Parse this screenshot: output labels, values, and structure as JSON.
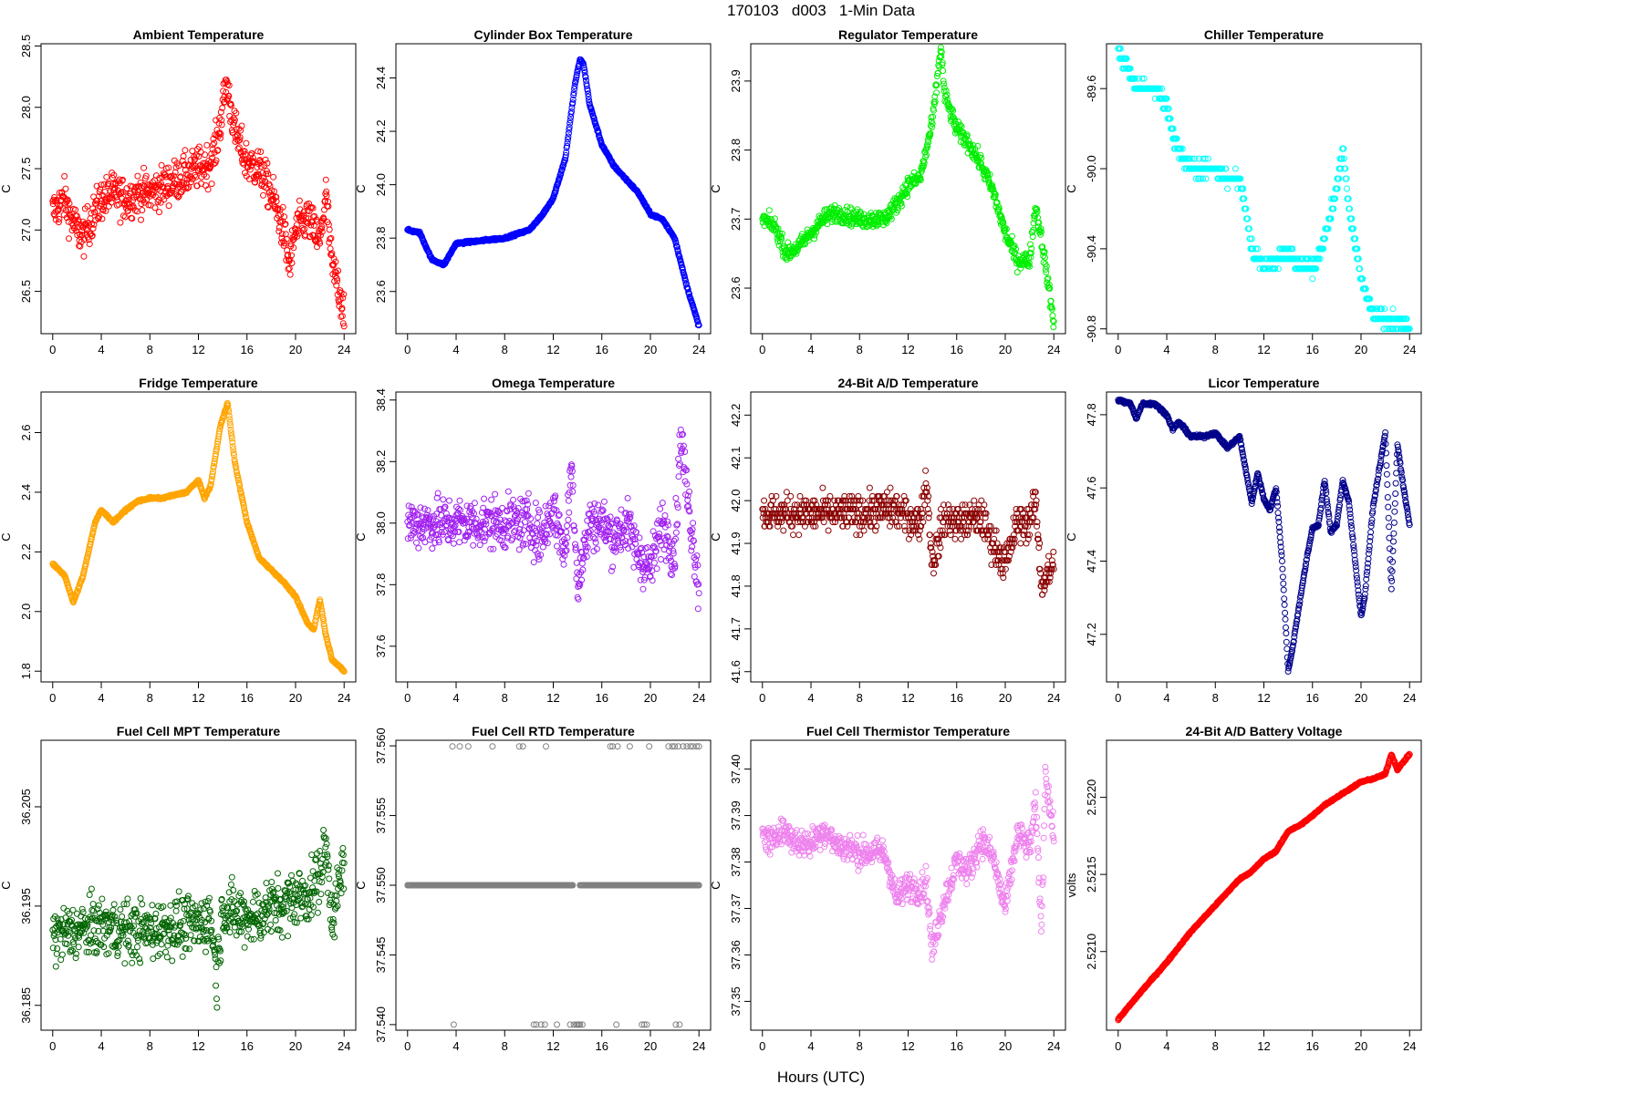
{
  "figure": {
    "title": "170103   d003   1-Min Data",
    "xlabel": "Hours (UTC)"
  },
  "chart_data": [
    {
      "type": "scatter",
      "title": "Ambient Temperature",
      "ylabel": "C",
      "color": "#ff0000",
      "xlim": [
        -0.96,
        24.96
      ],
      "ylim": [
        26.155,
        28.518
      ],
      "xticks": [
        0,
        4,
        8,
        12,
        16,
        20,
        24
      ],
      "yticks": [
        26.5,
        27.0,
        27.5,
        28.0,
        28.5
      ],
      "ytick_labels": [
        "26.5",
        "27.0",
        "27.5",
        "28.0",
        "28.5"
      ],
      "anchors_x": [
        0,
        0.5,
        1,
        1.5,
        2,
        2.5,
        3,
        4,
        5,
        6,
        7,
        8,
        9,
        10,
        11,
        12,
        13,
        13.5,
        14,
        14.3,
        15,
        16,
        17,
        18,
        19,
        19.5,
        20,
        21,
        22,
        22.5,
        23,
        23.5,
        24
      ],
      "anchors_y": [
        27.15,
        27.2,
        27.25,
        27.1,
        27.0,
        26.95,
        27.05,
        27.25,
        27.3,
        27.25,
        27.3,
        27.3,
        27.35,
        27.4,
        27.45,
        27.5,
        27.55,
        27.7,
        28.0,
        28.2,
        27.8,
        27.55,
        27.5,
        27.3,
        27.0,
        26.7,
        27.0,
        27.1,
        26.9,
        27.3,
        26.7,
        26.55,
        26.35
      ],
      "noise": 0.16
    },
    {
      "type": "scatter",
      "title": "Cylinder Box Temperature",
      "ylabel": "C",
      "color": "#0000ff",
      "xlim": [
        -0.96,
        24.96
      ],
      "ylim": [
        23.442,
        24.528
      ],
      "xticks": [
        0,
        4,
        8,
        12,
        16,
        20,
        24
      ],
      "yticks": [
        23.6,
        23.8,
        24.0,
        24.2,
        24.4
      ],
      "ytick_labels": [
        "23.6",
        "23.8",
        "24.0",
        "24.2",
        "24.4"
      ],
      "anchors_x": [
        0,
        1,
        2,
        3,
        4,
        6,
        8,
        10,
        11,
        12,
        13,
        13.8,
        14.2,
        14.5,
        15,
        16,
        17,
        18,
        19,
        20,
        21,
        22,
        23,
        24
      ],
      "anchors_y": [
        23.83,
        23.82,
        23.72,
        23.7,
        23.78,
        23.79,
        23.8,
        23.83,
        23.88,
        23.95,
        24.1,
        24.38,
        24.47,
        24.45,
        24.3,
        24.15,
        24.07,
        24.02,
        23.97,
        23.89,
        23.87,
        23.8,
        23.62,
        23.47
      ],
      "noise": 0.004
    },
    {
      "type": "scatter",
      "title": "Regulator Temperature",
      "ylabel": "C",
      "color": "#00ee00",
      "xlim": [
        -0.96,
        24.96
      ],
      "ylim": [
        23.534,
        23.954
      ],
      "xticks": [
        0,
        4,
        8,
        12,
        16,
        20,
        24
      ],
      "yticks": [
        23.6,
        23.7,
        23.8,
        23.9
      ],
      "ytick_labels": [
        "23.6",
        "23.7",
        "23.8",
        "23.9"
      ],
      "anchors_x": [
        0,
        1,
        2,
        3,
        4,
        5,
        6,
        8,
        10,
        11,
        12,
        13,
        14,
        14.7,
        15,
        16,
        17,
        18,
        19,
        20,
        21,
        22,
        22.5,
        23,
        24
      ],
      "anchors_y": [
        23.7,
        23.69,
        23.65,
        23.66,
        23.68,
        23.7,
        23.71,
        23.7,
        23.7,
        23.72,
        23.75,
        23.76,
        23.84,
        23.95,
        23.88,
        23.83,
        23.81,
        23.78,
        23.74,
        23.68,
        23.64,
        23.64,
        23.72,
        23.67,
        23.55
      ],
      "noise": 0.012
    },
    {
      "type": "scatter",
      "title": "Chiller Temperature",
      "ylabel": "C",
      "color": "#00ffff",
      "xlim": [
        -0.96,
        24.96
      ],
      "ylim": [
        -90.824,
        -89.376
      ],
      "xticks": [
        0,
        4,
        8,
        12,
        16,
        20,
        24
      ],
      "yticks": [
        -90.8,
        -90.4,
        -90.0,
        -89.6
      ],
      "ytick_labels": [
        "-90.8",
        "-90.4",
        "-90.0",
        "-89.6"
      ],
      "anchors_x": [
        0,
        1,
        1.5,
        3,
        4,
        4.5,
        5,
        6,
        8,
        9,
        10,
        10.5,
        11,
        12,
        14,
        15,
        16,
        17,
        18,
        18.5,
        19,
        20,
        21,
        22,
        23,
        24
      ],
      "anchors_y": [
        -89.42,
        -89.52,
        -89.6,
        -89.6,
        -89.68,
        -89.82,
        -89.92,
        -90.0,
        -90.0,
        -90.05,
        -90.05,
        -90.2,
        -90.4,
        -90.48,
        -90.42,
        -90.48,
        -90.5,
        -90.35,
        -90.1,
        -89.9,
        -90.2,
        -90.55,
        -90.72,
        -90.75,
        -90.76,
        -90.78
      ],
      "noise": 0.035,
      "quant": 0.05
    },
    {
      "type": "scatter",
      "title": "Fridge Temperature",
      "ylabel": "C",
      "color": "#ffa500",
      "xlim": [
        -0.96,
        24.96
      ],
      "ylim": [
        1.764,
        2.736
      ],
      "xticks": [
        0,
        4,
        8,
        12,
        16,
        20,
        24
      ],
      "yticks": [
        1.8,
        2.0,
        2.2,
        2.4,
        2.6
      ],
      "ytick_labels": [
        "1.8",
        "2.0",
        "2.2",
        "2.4",
        "2.6"
      ],
      "anchors_x": [
        0,
        1,
        1.7,
        2.5,
        3.5,
        4,
        5,
        6,
        7,
        8,
        9,
        10,
        11,
        12,
        12.5,
        13,
        13.8,
        14.4,
        15,
        16,
        17,
        18,
        19,
        20,
        21,
        21.5,
        22,
        22.5,
        23,
        24
      ],
      "anchors_y": [
        2.16,
        2.12,
        2.03,
        2.12,
        2.3,
        2.34,
        2.3,
        2.34,
        2.37,
        2.38,
        2.38,
        2.39,
        2.4,
        2.44,
        2.38,
        2.42,
        2.62,
        2.7,
        2.5,
        2.3,
        2.18,
        2.14,
        2.1,
        2.05,
        1.96,
        1.94,
        2.04,
        1.92,
        1.84,
        1.8
      ],
      "noise": 0.003
    },
    {
      "type": "scatter",
      "title": "Omega Temperature",
      "ylabel": "C",
      "color": "#a020f0",
      "xlim": [
        -0.96,
        24.96
      ],
      "ylim": [
        37.484,
        38.426
      ],
      "xticks": [
        0,
        4,
        8,
        12,
        16,
        20,
        24
      ],
      "yticks": [
        37.6,
        37.8,
        38.0,
        38.2,
        38.4
      ],
      "ytick_labels": [
        "37.6",
        "37.8",
        "38.0",
        "38.2",
        "38.4"
      ],
      "anchors_x": [
        0,
        2,
        4,
        6,
        8,
        10,
        11,
        12,
        13,
        13.5,
        14,
        15,
        16,
        17,
        18,
        19,
        20,
        21,
        22,
        22.5,
        23,
        24
      ],
      "anchors_y": [
        38.0,
        38.0,
        38.0,
        38.0,
        38.0,
        38.0,
        37.95,
        38.05,
        37.9,
        38.2,
        37.8,
        38.0,
        38.0,
        37.95,
        38.0,
        37.9,
        37.85,
        38.0,
        37.9,
        38.3,
        38.1,
        37.8
      ],
      "noise": 0.08
    },
    {
      "type": "scatter",
      "title": "24-Bit A/D Temperature",
      "ylabel": "C",
      "color": "#8b0000",
      "xlim": [
        -0.96,
        24.96
      ],
      "ylim": [
        41.576,
        42.254
      ],
      "xticks": [
        0,
        4,
        8,
        12,
        16,
        20,
        24
      ],
      "yticks": [
        41.6,
        41.7,
        41.8,
        41.9,
        42.0,
        42.1,
        42.2
      ],
      "ytick_labels": [
        "41.6",
        "41.7",
        "41.8",
        "41.9",
        "42.0",
        "42.1",
        "42.2"
      ],
      "anchors_x": [
        0,
        4,
        8,
        10,
        11,
        12,
        13,
        13.5,
        14,
        15,
        16,
        18,
        19,
        20,
        21,
        22,
        22.5,
        23,
        24
      ],
      "anchors_y": [
        41.97,
        41.97,
        41.97,
        41.98,
        41.98,
        41.96,
        41.95,
        42.05,
        41.85,
        41.96,
        41.95,
        41.96,
        41.9,
        41.85,
        41.95,
        41.95,
        42.0,
        41.8,
        41.85
      ],
      "noise": 0.04,
      "quant": 0.01
    },
    {
      "type": "scatter",
      "title": "Licor Temperature",
      "ylabel": "C",
      "color": "#00008b",
      "xlim": [
        -0.96,
        24.96
      ],
      "ylim": [
        47.07,
        47.862
      ],
      "xticks": [
        0,
        4,
        8,
        12,
        16,
        20,
        24
      ],
      "yticks": [
        47.2,
        47.4,
        47.6,
        47.8
      ],
      "ytick_labels": [
        "47.2",
        "47.4",
        "47.6",
        "47.8"
      ],
      "anchors_x": [
        0,
        1,
        1.5,
        2,
        3,
        4,
        4.5,
        5,
        6,
        7,
        8,
        9,
        10,
        11,
        11.5,
        12,
        12.5,
        13,
        13.5,
        14,
        14.3,
        15,
        15.5,
        16,
        16.5,
        17,
        17.5,
        18,
        18.5,
        19,
        20,
        20.3,
        21,
        22,
        22.5,
        23,
        23.5,
        24
      ],
      "anchors_y": [
        47.84,
        47.83,
        47.79,
        47.83,
        47.83,
        47.8,
        47.76,
        47.78,
        47.74,
        47.74,
        47.75,
        47.71,
        47.74,
        47.56,
        47.64,
        47.57,
        47.54,
        47.6,
        47.4,
        47.1,
        47.15,
        47.3,
        47.4,
        47.49,
        47.5,
        47.62,
        47.48,
        47.5,
        47.62,
        47.56,
        47.25,
        47.3,
        47.55,
        47.75,
        47.32,
        47.72,
        47.6,
        47.5
      ],
      "noise": 0.004
    },
    {
      "type": "scatter",
      "title": "Fuel Cell MPT Temperature",
      "ylabel": "C",
      "color": "#006400",
      "xlim": [
        -0.96,
        24.96
      ],
      "ylim": [
        36.1825,
        36.2117
      ],
      "xticks": [
        0,
        4,
        8,
        12,
        16,
        20,
        24
      ],
      "yticks": [
        36.185,
        36.195,
        36.205
      ],
      "ytick_labels": [
        "36.185",
        "36.195",
        "36.205"
      ],
      "anchors_x": [
        0,
        2,
        4,
        6,
        8,
        10,
        12,
        13,
        13.5,
        14,
        15,
        16,
        17,
        18,
        19,
        20,
        21,
        22,
        22.5,
        23,
        24
      ],
      "anchors_y": [
        36.192,
        36.1925,
        36.193,
        36.1925,
        36.1925,
        36.193,
        36.193,
        36.194,
        36.188,
        36.195,
        36.194,
        36.194,
        36.194,
        36.195,
        36.195,
        36.196,
        36.196,
        36.198,
        36.201,
        36.194,
        36.199
      ],
      "noise": 0.0028
    },
    {
      "type": "scatter",
      "title": "Fuel Cell RTD Temperature",
      "ylabel": "C",
      "color": "#808080",
      "xlim": [
        -0.96,
        24.96
      ],
      "ylim": [
        37.5396,
        37.5604
      ],
      "xticks": [
        0,
        4,
        8,
        12,
        16,
        20,
        24
      ],
      "yticks": [
        37.54,
        37.545,
        37.55,
        37.555,
        37.56
      ],
      "ytick_labels": [
        "37.540",
        "37.545",
        "37.550",
        "37.555",
        "37.560"
      ],
      "baseline": 37.55,
      "gap": [
        13.6,
        14.2
      ],
      "outliers_high": [
        3.7,
        4.3,
        5.0,
        7.0,
        9.2,
        9.5,
        11.4,
        16.7,
        16.9,
        17.3,
        18.3,
        19.9,
        21.5,
        21.8,
        22.0,
        22.3,
        22.7,
        23.0,
        23.3,
        23.5,
        23.8,
        24.0
      ],
      "outliers_low": [
        3.8,
        10.4,
        10.6,
        11.0,
        11.3,
        12.3,
        13.4,
        13.7,
        13.9,
        14.0,
        14.1,
        14.2,
        14.4,
        17.2,
        19.3,
        19.5,
        19.7,
        22.1,
        22.4
      ]
    },
    {
      "type": "scatter",
      "title": "Fuel Cell Thermistor Temperature",
      "ylabel": "C",
      "color": "#ee82ee",
      "xlim": [
        -0.96,
        24.96
      ],
      "ylim": [
        37.3438,
        37.4062
      ],
      "xticks": [
        0,
        4,
        8,
        12,
        16,
        20,
        24
      ],
      "yticks": [
        37.35,
        37.36,
        37.37,
        37.38,
        37.39,
        37.4
      ],
      "ytick_labels": [
        "37.35",
        "37.36",
        "37.37",
        "37.38",
        "37.39",
        "37.40"
      ],
      "anchors_x": [
        0,
        1,
        1.5,
        2,
        3,
        4,
        5,
        6,
        8,
        10,
        10.5,
        11,
        12,
        13,
        13.5,
        14,
        14.3,
        15,
        16,
        17,
        18,
        19,
        19.5,
        20,
        21,
        22,
        22.5,
        23,
        23.3,
        24
      ],
      "anchors_y": [
        37.386,
        37.384,
        37.388,
        37.386,
        37.384,
        37.384,
        37.387,
        37.384,
        37.382,
        37.382,
        37.378,
        37.372,
        37.375,
        37.374,
        37.376,
        37.36,
        37.365,
        37.372,
        37.38,
        37.378,
        37.385,
        37.381,
        37.375,
        37.37,
        37.386,
        37.383,
        37.392,
        37.365,
        37.4,
        37.385
      ],
      "noise": 0.003
    },
    {
      "type": "line",
      "title": "24-Bit A/D Battery Voltage",
      "ylabel": "volts",
      "color": "#ff0000",
      "xlim": [
        -0.96,
        24.96
      ],
      "ylim": [
        2.52049,
        2.52237
      ],
      "xticks": [
        0,
        4,
        8,
        12,
        16,
        20,
        24
      ],
      "yticks": [
        2.521,
        2.5215,
        2.522
      ],
      "ytick_labels": [
        "2.5210",
        "2.5215",
        "2.5220"
      ],
      "anchors_x": [
        0,
        2,
        4,
        6,
        8,
        10,
        11,
        12,
        13,
        14,
        15,
        16,
        17,
        18,
        19,
        20,
        21,
        22,
        22.5,
        23,
        24
      ],
      "anchors_y": [
        2.52056,
        2.52075,
        2.52093,
        2.52113,
        2.5213,
        2.52147,
        2.52152,
        2.5216,
        2.52165,
        2.52178,
        2.52182,
        2.52188,
        2.52195,
        2.522,
        2.52205,
        2.5221,
        2.52212,
        2.52215,
        2.52228,
        2.52218,
        2.52228
      ],
      "noise": 5e-06
    }
  ]
}
